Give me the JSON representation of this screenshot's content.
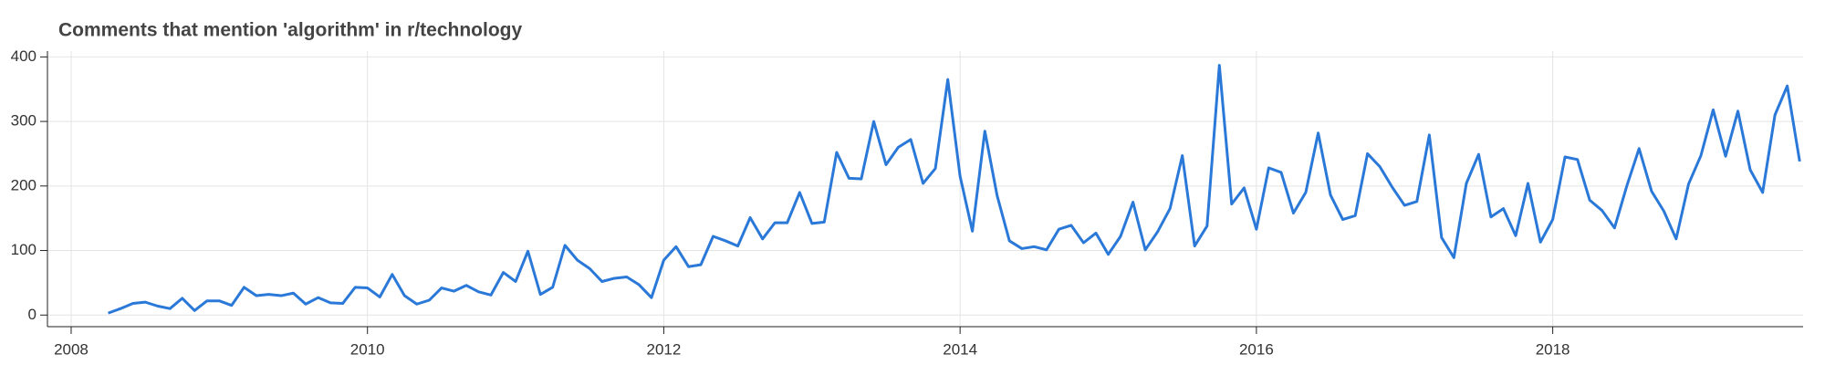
{
  "chart_data": {
    "type": "line",
    "title": "Comments that mention 'algorithm' in r/technology",
    "x": [
      2008.25,
      2008.333,
      2008.417,
      2008.5,
      2008.583,
      2008.667,
      2008.75,
      2008.833,
      2008.917,
      2009.0,
      2009.083,
      2009.167,
      2009.25,
      2009.333,
      2009.417,
      2009.5,
      2009.583,
      2009.667,
      2009.75,
      2009.833,
      2009.917,
      2010.0,
      2010.083,
      2010.167,
      2010.25,
      2010.333,
      2010.417,
      2010.5,
      2010.583,
      2010.667,
      2010.75,
      2010.833,
      2010.917,
      2011.0,
      2011.083,
      2011.167,
      2011.25,
      2011.333,
      2011.417,
      2011.5,
      2011.583,
      2011.667,
      2011.75,
      2011.833,
      2011.917,
      2012.0,
      2012.083,
      2012.167,
      2012.25,
      2012.333,
      2012.417,
      2012.5,
      2012.583,
      2012.667,
      2012.75,
      2012.833,
      2012.917,
      2013.0,
      2013.083,
      2013.167,
      2013.25,
      2013.333,
      2013.417,
      2013.5,
      2013.583,
      2013.667,
      2013.75,
      2013.833,
      2013.917,
      2014.0,
      2014.083,
      2014.167,
      2014.25,
      2014.333,
      2014.417,
      2014.5,
      2014.583,
      2014.667,
      2014.75,
      2014.833,
      2014.917,
      2015.0,
      2015.083,
      2015.167,
      2015.25,
      2015.333,
      2015.417,
      2015.5,
      2015.583,
      2015.667,
      2015.75,
      2015.833,
      2015.917,
      2016.0,
      2016.083,
      2016.167,
      2016.25,
      2016.333,
      2016.417,
      2016.5,
      2016.583,
      2016.667,
      2016.75,
      2016.833,
      2016.917,
      2017.0,
      2017.083,
      2017.167,
      2017.25,
      2017.333,
      2017.417,
      2017.5,
      2017.583,
      2017.667,
      2017.75,
      2017.833,
      2017.917,
      2018.0,
      2018.083,
      2018.167,
      2018.25,
      2018.333,
      2018.417,
      2018.5,
      2018.583,
      2018.667,
      2018.75,
      2018.833,
      2018.917,
      2019.0,
      2019.083,
      2019.167,
      2019.25,
      2019.333,
      2019.417,
      2019.5,
      2019.583,
      2019.667
    ],
    "series": [
      {
        "color": "#2a78d8",
        "values": [
          3,
          10,
          18,
          20,
          14,
          10,
          26,
          7,
          22,
          22,
          15,
          43,
          30,
          32,
          30,
          34,
          17,
          27,
          19,
          18,
          43,
          42,
          28,
          63,
          30,
          17,
          23,
          42,
          37,
          46,
          36,
          31,
          66,
          52,
          99,
          32,
          43,
          108,
          85,
          72,
          52,
          57,
          59,
          47,
          27,
          85,
          106,
          75,
          78,
          122,
          115,
          107,
          151,
          118,
          143,
          143,
          190,
          142,
          144,
          252,
          212,
          211,
          300,
          233,
          260,
          272,
          204,
          227,
          365,
          215,
          130,
          285,
          185,
          115,
          103,
          106,
          101,
          133,
          139,
          112,
          127,
          94,
          122,
          175,
          101,
          129,
          165,
          247,
          107,
          138,
          387,
          172,
          197,
          133,
          228,
          221,
          158,
          190,
          282,
          186,
          148,
          154,
          250,
          230,
          198,
          170,
          176,
          279,
          120,
          89,
          204,
          249,
          152,
          165,
          123,
          204,
          113,
          148,
          245,
          241,
          178,
          162,
          135,
          200,
          258,
          192,
          161,
          118,
          203,
          247,
          318,
          246,
          316,
          225,
          190,
          310,
          355,
          238
        ]
      }
    ],
    "xlim": [
      2007.84,
      2019.69
    ],
    "xticks": [
      2008,
      2010,
      2012,
      2014,
      2016,
      2018
    ],
    "ylim": [
      -18,
      409
    ],
    "yticks": [
      0,
      100,
      200,
      300,
      400
    ],
    "grid": true
  }
}
